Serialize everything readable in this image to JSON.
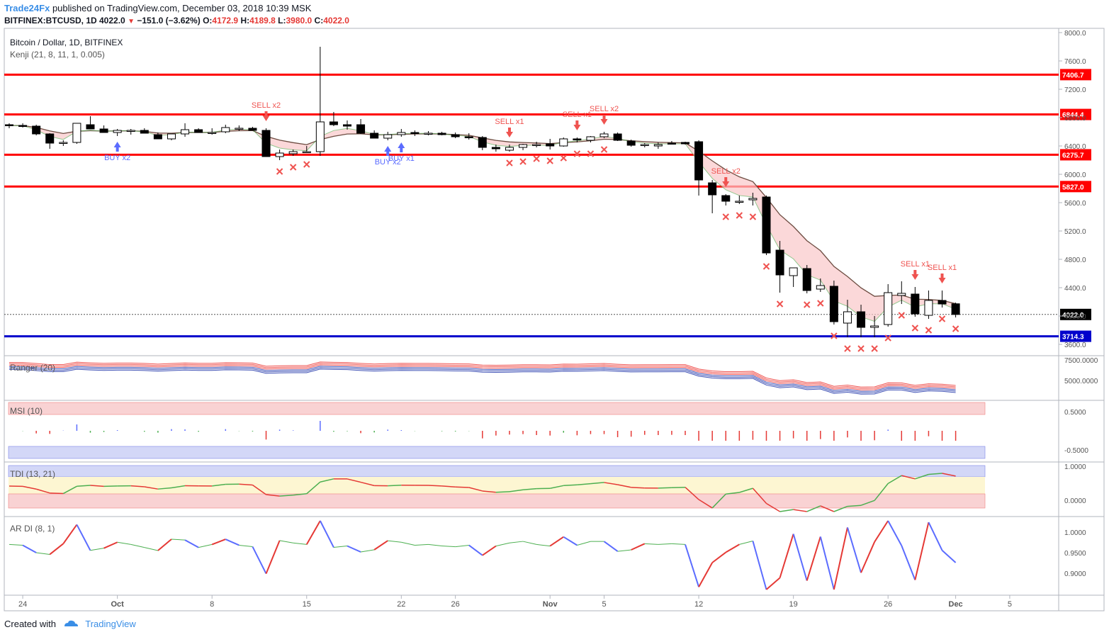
{
  "header": {
    "brand": "Trade24Fx",
    "published": "published on TradingView.com, December 03, 2018 10:39 MSK",
    "symbol_line": "BITFINEX:BTCUSD, 1D 4022.0",
    "change": "−151.0 (−3.62%)",
    "ohlc_o_label": "O:",
    "ohlc_o": "4172.9",
    "ohlc_h_label": "H:",
    "ohlc_h": "4189.8",
    "ohlc_l_label": "L:",
    "ohlc_l": "3980.0",
    "ohlc_c_label": "C:",
    "ohlc_c": "4022.0"
  },
  "pane_titles": {
    "main": "Bitcoin / Dollar, 1D, BITFINEX",
    "kenji": "Kenji (21, 8, 11, 1, 0.005)",
    "ranger": "Ranger (20)",
    "msi": "MSI (10)",
    "tdi": "TDI (13, 21)",
    "ardi": "AR DI (8, 1)"
  },
  "footer": {
    "created_with": "Created with",
    "brand": "TradingView"
  },
  "colors": {
    "up": "#ffffff",
    "down": "#000000",
    "level_red": "#ff0000",
    "level_blue": "#0000cc",
    "sell": "#ef5350",
    "buy": "#5b6cff",
    "cloud": "#f9c7c9"
  },
  "chart_data": {
    "type": "candlestick",
    "ylim": [
      3500,
      8050
    ],
    "y_ticks": [
      "3600.0",
      "4000.0",
      "4400.0",
      "4800.0",
      "5200.0",
      "5600.0",
      "6000.0",
      "6400.0",
      "6800.0",
      "7200.0",
      "7600.0",
      "8000.0"
    ],
    "x_ticks": [
      "24",
      "Oct",
      "8",
      "15",
      "22",
      "26",
      "Nov",
      "5",
      "12",
      "19",
      "26",
      "Dec",
      "5"
    ],
    "levels": [
      {
        "value": 7406.7,
        "label": "7406.7",
        "color": "red"
      },
      {
        "value": 6844.4,
        "label": "6844.4",
        "color": "red"
      },
      {
        "value": 6275.7,
        "label": "6275.7",
        "color": "red"
      },
      {
        "value": 5827.0,
        "label": "5827.0",
        "color": "red"
      },
      {
        "value": 3714.3,
        "label": "3714.3",
        "color": "blue"
      }
    ],
    "last_price": {
      "value": 4022.0,
      "label": "4022.0"
    },
    "candles": [
      [
        6700,
        6720,
        6650,
        6690
      ],
      [
        6690,
        6720,
        6660,
        6680
      ],
      [
        6680,
        6700,
        6550,
        6570
      ],
      [
        6570,
        6580,
        6360,
        6440
      ],
      [
        6440,
        6480,
        6400,
        6450
      ],
      [
        6450,
        6720,
        6430,
        6720
      ],
      [
        6700,
        6820,
        6640,
        6640
      ],
      [
        6640,
        6690,
        6600,
        6590
      ],
      [
        6590,
        6640,
        6540,
        6620
      ],
      [
        6610,
        6640,
        6560,
        6620
      ],
      [
        6620,
        6650,
        6580,
        6580
      ],
      [
        6560,
        6590,
        6500,
        6500
      ],
      [
        6500,
        6570,
        6480,
        6570
      ],
      [
        6570,
        6720,
        6530,
        6630
      ],
      [
        6630,
        6650,
        6600,
        6590
      ],
      [
        6590,
        6650,
        6560,
        6590
      ],
      [
        6600,
        6700,
        6580,
        6660
      ],
      [
        6650,
        6690,
        6610,
        6650
      ],
      [
        6650,
        6670,
        6620,
        6620
      ],
      [
        6620,
        6650,
        6250,
        6250
      ],
      [
        6250,
        6350,
        6200,
        6300
      ],
      [
        6290,
        6350,
        6260,
        6320
      ],
      [
        6320,
        6400,
        6300,
        6320
      ],
      [
        6320,
        7800,
        6260,
        6740
      ],
      [
        6740,
        6880,
        6680,
        6700
      ],
      [
        6700,
        6760,
        6630,
        6680
      ],
      [
        6700,
        6780,
        6570,
        6580
      ],
      [
        6580,
        6620,
        6510,
        6510
      ],
      [
        6510,
        6600,
        6480,
        6560
      ],
      [
        6560,
        6640,
        6530,
        6590
      ],
      [
        6590,
        6620,
        6540,
        6580
      ],
      [
        6580,
        6610,
        6550,
        6580
      ],
      [
        6580,
        6600,
        6550,
        6560
      ],
      [
        6560,
        6590,
        6510,
        6530
      ],
      [
        6530,
        6580,
        6490,
        6520
      ],
      [
        6520,
        6540,
        6340,
        6380
      ],
      [
        6380,
        6420,
        6320,
        6360
      ],
      [
        6340,
        6420,
        6320,
        6380
      ],
      [
        6380,
        6430,
        6340,
        6420
      ],
      [
        6420,
        6460,
        6380,
        6420
      ],
      [
        6430,
        6500,
        6350,
        6400
      ],
      [
        6400,
        6520,
        6390,
        6500
      ],
      [
        6500,
        6520,
        6450,
        6490
      ],
      [
        6480,
        6540,
        6450,
        6530
      ],
      [
        6530,
        6600,
        6510,
        6570
      ],
      [
        6570,
        6590,
        6470,
        6480
      ],
      [
        6470,
        6490,
        6390,
        6410
      ],
      [
        6410,
        6440,
        6380,
        6420
      ],
      [
        6400,
        6450,
        6360,
        6420
      ],
      [
        6440,
        6470,
        6420,
        6430
      ],
      [
        6450,
        6460,
        6420,
        6430
      ],
      [
        6460,
        6480,
        5700,
        5920
      ],
      [
        5880,
        5920,
        5450,
        5710
      ],
      [
        5700,
        5720,
        5560,
        5620
      ],
      [
        5620,
        5700,
        5580,
        5620
      ],
      [
        5640,
        5740,
        5560,
        5660
      ],
      [
        5680,
        5700,
        4860,
        4890
      ],
      [
        4930,
        5060,
        4330,
        4580
      ],
      [
        4570,
        4680,
        4410,
        4680
      ],
      [
        4670,
        4720,
        4320,
        4360
      ],
      [
        4380,
        4530,
        4340,
        4430
      ],
      [
        4420,
        4500,
        3880,
        3920
      ],
      [
        3900,
        4230,
        3700,
        4060
      ],
      [
        4060,
        4160,
        3700,
        3840
      ],
      [
        3840,
        4000,
        3700,
        3860
      ],
      [
        3880,
        4450,
        3850,
        4330
      ],
      [
        4290,
        4490,
        4170,
        4320
      ],
      [
        4310,
        4410,
        3990,
        4030
      ],
      [
        4010,
        4360,
        3960,
        4220
      ],
      [
        4220,
        4360,
        4120,
        4170
      ],
      [
        4172.9,
        4189.8,
        3980.0,
        4022.0
      ]
    ],
    "signals": [
      {
        "type": "buy",
        "label": "BUY x2"
      },
      {
        "type": "sell",
        "label": "SELL x2"
      },
      {
        "type": "buy",
        "label": "BUY x2"
      },
      {
        "type": "buy",
        "label": "BUY x1"
      },
      {
        "type": "sell",
        "label": "SELL x1"
      },
      {
        "type": "sell",
        "label": "SELL x1"
      },
      {
        "type": "sell",
        "label": "SELL x2"
      },
      {
        "type": "sell",
        "label": "SELL x2"
      },
      {
        "type": "sell",
        "label": "SELL x1"
      },
      {
        "type": "sell",
        "label": "SELL x1"
      }
    ],
    "ranger_ticks": [
      "7500.0000",
      "5000.0000"
    ],
    "msi_ticks": [
      "0.5000",
      "-0.5000"
    ],
    "tdi_ticks": [
      "1.0000",
      "0.0000"
    ],
    "ardi_ticks": [
      "1.0000",
      "0.9500",
      "0.9000"
    ]
  }
}
